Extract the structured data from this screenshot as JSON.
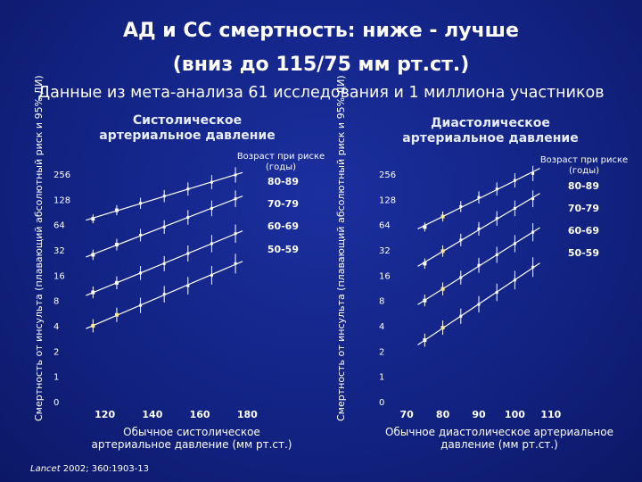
{
  "title_line1": "АД и СС смертность: ниже - лучше",
  "title_line2": "(вниз до 115/75 мм рт.ст.)",
  "subtitle": "Данные из мета-анализа 61 исследования и 1 миллиона участников",
  "citation": {
    "journal": "Lancet",
    "rest": " 2002; 360:1903-13"
  },
  "chart_data": [
    {
      "type": "scatter",
      "title": "Систолическое артериальное давление",
      "xlabel": "Обычное систолическое артериальное давление (мм рт.ст.)",
      "ylabel": "Смертность от инсульта (плавающий абсолютный риск и 95% ДИ)",
      "legend_title": "Возраст при риске (годы)",
      "x_ticks": [
        120,
        140,
        160,
        180
      ],
      "y_ticks": [
        "0",
        "1",
        "2",
        "4",
        "8",
        "16",
        "32",
        "64",
        "128",
        "256"
      ],
      "xlim": [
        113,
        187
      ],
      "y_scale": "log2",
      "series": [
        {
          "name": "80-89",
          "x": [
            115,
            125,
            135,
            145,
            155,
            165,
            175
          ],
          "y": [
            75,
            95,
            115,
            140,
            170,
            205,
            250
          ]
        },
        {
          "name": "70-79",
          "x": [
            115,
            125,
            135,
            145,
            155,
            165,
            175
          ],
          "y": [
            28,
            37,
            48,
            60,
            78,
            100,
            130
          ]
        },
        {
          "name": "60-69",
          "x": [
            115,
            125,
            135,
            145,
            155,
            165,
            175
          ],
          "y": [
            10,
            13,
            17,
            22,
            29,
            38,
            50
          ]
        },
        {
          "name": "50-59",
          "x": [
            115,
            125,
            135,
            145,
            155,
            165,
            175
          ],
          "y": [
            4,
            5.4,
            7,
            9.5,
            12,
            16,
            22
          ]
        }
      ]
    },
    {
      "type": "scatter",
      "title": "Диастолическое артериальное давление",
      "xlabel": "Обычное диастолическое артериальное давление (мм рт.ст.)",
      "ylabel": "Смертность от инсульта (плавающий абсолютный риск и 95% ДИ)",
      "legend_title": "Возраст при риске (годы)",
      "x_ticks": [
        70,
        80,
        90,
        100,
        110
      ],
      "y_ticks": [
        "0",
        "1",
        "2",
        "4",
        "8",
        "16",
        "32",
        "64",
        "128",
        "256"
      ],
      "xlim": [
        66,
        114
      ],
      "y_scale": "log2",
      "series": [
        {
          "name": "80-89",
          "x": [
            75,
            80,
            85,
            90,
            95,
            100,
            105
          ],
          "y": [
            60,
            80,
            105,
            135,
            170,
            215,
            260
          ]
        },
        {
          "name": "70-79",
          "x": [
            75,
            80,
            85,
            90,
            95,
            100,
            105
          ],
          "y": [
            22,
            31,
            42,
            57,
            76,
            100,
            130
          ]
        },
        {
          "name": "60-69",
          "x": [
            75,
            80,
            85,
            90,
            95,
            100,
            105
          ],
          "y": [
            8,
            11,
            15,
            21,
            28,
            38,
            52
          ]
        },
        {
          "name": "50-59",
          "x": [
            75,
            80,
            85,
            90,
            95,
            100,
            105
          ],
          "y": [
            2.7,
            3.8,
            5.2,
            7.2,
            10,
            14,
            20
          ]
        }
      ]
    }
  ]
}
